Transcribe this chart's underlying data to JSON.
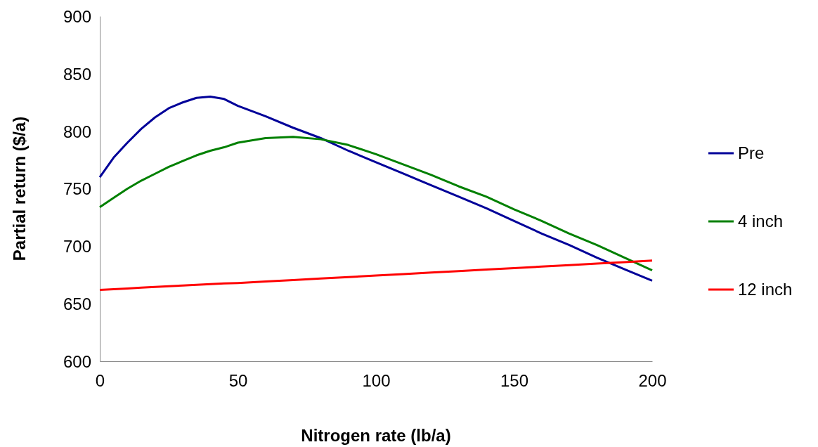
{
  "chart_data": {
    "type": "line",
    "xlabel": "Nitrogen rate (lb/a)",
    "ylabel": "Partial return ($/a)",
    "x": [
      0,
      5,
      10,
      15,
      20,
      25,
      30,
      35,
      40,
      45,
      50,
      60,
      70,
      80,
      90,
      100,
      110,
      120,
      130,
      140,
      150,
      160,
      170,
      180,
      190,
      200
    ],
    "series": [
      {
        "name": "Pre",
        "color": "#000099",
        "values": [
          760,
          777,
          790,
          802,
          812,
          820,
          825,
          829,
          830,
          828,
          822,
          813,
          803,
          794,
          783,
          773,
          763,
          753,
          743,
          733,
          722,
          711,
          701,
          690,
          680,
          670
        ]
      },
      {
        "name": "4 inch",
        "color": "#008000",
        "values": [
          734,
          742,
          750,
          757,
          763,
          769,
          774,
          779,
          783,
          786,
          790,
          794,
          795,
          793,
          788,
          780,
          771,
          762,
          752,
          743,
          732,
          722,
          711,
          701,
          690,
          679
        ]
      },
      {
        "name": "12 inch",
        "color": "#ff0000",
        "values": [
          662,
          662.6,
          663.3,
          664,
          664.6,
          665.2,
          665.8,
          666.4,
          667,
          667.6,
          668,
          669.3,
          670.6,
          671.9,
          673.2,
          674.5,
          675.8,
          677.1,
          678.4,
          679.7,
          681,
          682.3,
          683.6,
          684.9,
          686.2,
          687.5
        ]
      }
    ],
    "xlim": [
      0,
      200
    ],
    "xticks": [
      0,
      50,
      100,
      150,
      200
    ],
    "ylim": [
      600,
      900
    ],
    "yticks": [
      600,
      650,
      700,
      750,
      800,
      850,
      900
    ],
    "grid": false,
    "legend": "right",
    "marker": "none",
    "line_style": "solid"
  }
}
